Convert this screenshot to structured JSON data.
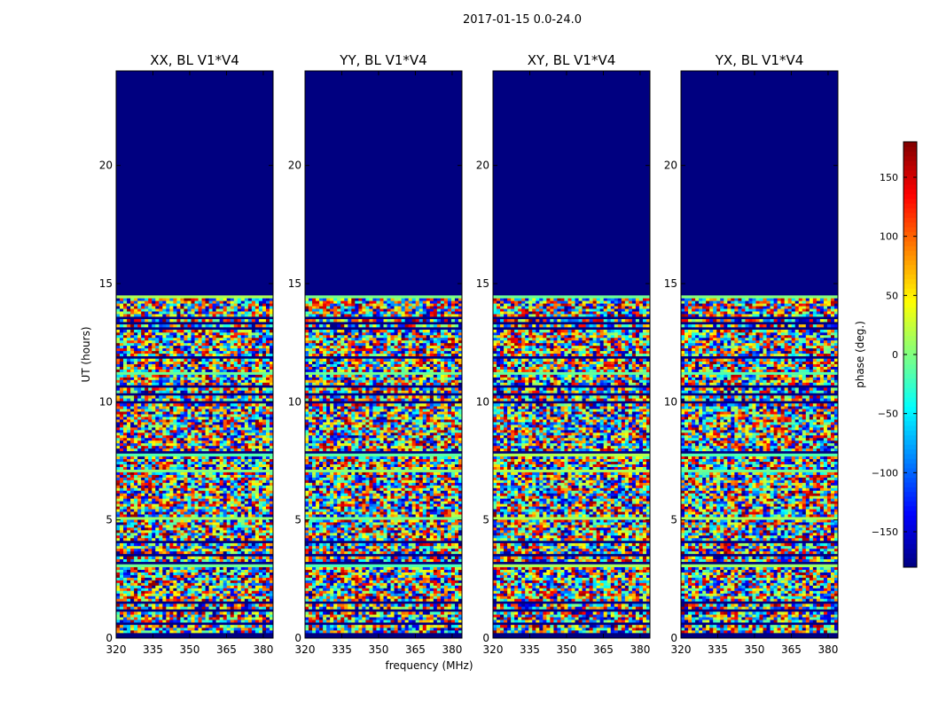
{
  "figure": {
    "suptitle": "2017-01-15 0.0-24.0"
  },
  "chart_data": {
    "type": "heatmap",
    "colormap": "jet",
    "xlabel": "frequency (MHz)",
    "ylabel": "UT (hours)",
    "xlim": [
      320,
      384
    ],
    "ylim": [
      0,
      24
    ],
    "x_ticks": [
      320,
      335,
      350,
      365,
      380
    ],
    "y_ticks": [
      0,
      5,
      10,
      15,
      20
    ],
    "data_end_hour": 14.5,
    "empty_region_value": -180,
    "panels": [
      {
        "title": "XX, BL V1*V4"
      },
      {
        "title": "YY, BL V1*V4"
      },
      {
        "title": "XY, BL V1*V4"
      },
      {
        "title": "YX, BL V1*V4"
      }
    ],
    "colorbar": {
      "label": "phase (deg.)",
      "range": [
        -180,
        180
      ],
      "ticks": [
        -150,
        -100,
        -50,
        0,
        50,
        100,
        150
      ],
      "tick_labels": [
        "−150",
        "−100",
        "−50",
        "0",
        "50",
        "100",
        "150"
      ]
    }
  }
}
